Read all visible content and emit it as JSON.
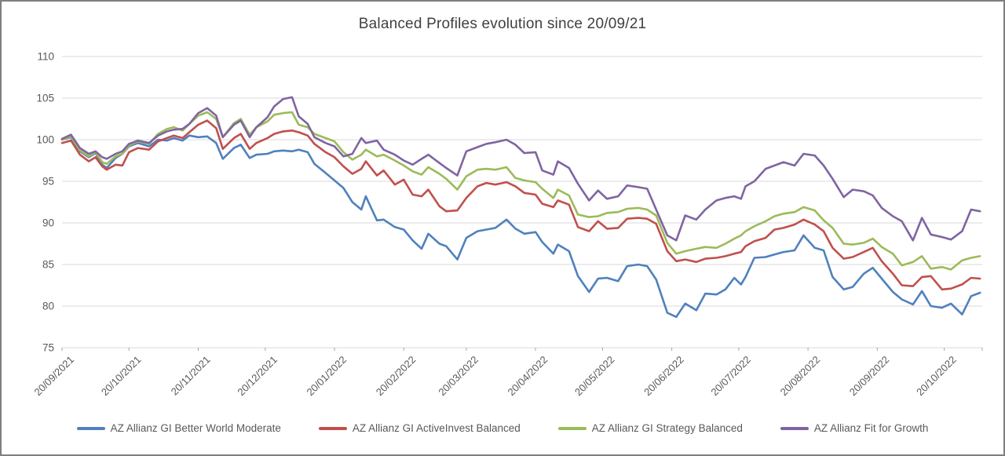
{
  "title": "Balanced Profiles evolution since 20/09/21",
  "colors": {
    "background": "#FFFFFF",
    "border": "#7F7F7F",
    "grid": "#D9D9D9",
    "tick": "#A6A6A6",
    "axis_text": "#595959",
    "title_text": "#404040"
  },
  "chart_data": {
    "type": "line",
    "title": "Balanced Profiles evolution since 20/09/21",
    "xlabel": "",
    "ylabel": "",
    "ylim": [
      75,
      110
    ],
    "y_ticks": [
      75,
      80,
      85,
      90,
      95,
      100,
      105,
      110
    ],
    "grid": "horizontal",
    "legend_position": "bottom",
    "x_unit": "days since 20/09/2021",
    "x_domain": [
      0,
      412
    ],
    "x_ticks": [
      {
        "day": 0,
        "label": "20/09/2021"
      },
      {
        "day": 30,
        "label": "20/10/2021"
      },
      {
        "day": 61,
        "label": "20/11/2021"
      },
      {
        "day": 91,
        "label": "20/12/2021"
      },
      {
        "day": 122,
        "label": "20/01/2022"
      },
      {
        "day": 153,
        "label": "20/02/2022"
      },
      {
        "day": 181,
        "label": "20/03/2022"
      },
      {
        "day": 212,
        "label": "20/04/2022"
      },
      {
        "day": 242,
        "label": "20/05/2022"
      },
      {
        "day": 273,
        "label": "20/06/2022"
      },
      {
        "day": 303,
        "label": "20/07/2022"
      },
      {
        "day": 334,
        "label": "20/08/2022"
      },
      {
        "day": 365,
        "label": "20/09/2022"
      },
      {
        "day": 395,
        "label": "20/10/2022"
      }
    ],
    "x": [
      0,
      4,
      8,
      12,
      15,
      18,
      20,
      24,
      27,
      30,
      34,
      39,
      43,
      47,
      50,
      54,
      57,
      61,
      65,
      69,
      72,
      77,
      80,
      84,
      87,
      92,
      95,
      99,
      103,
      106,
      110,
      113,
      118,
      122,
      126,
      130,
      134,
      136,
      141,
      144,
      149,
      153,
      157,
      161,
      164,
      169,
      172,
      177,
      181,
      186,
      190,
      194,
      199,
      203,
      207,
      212,
      215,
      220,
      222,
      227,
      231,
      236,
      240,
      244,
      249,
      253,
      258,
      262,
      266,
      271,
      275,
      279,
      284,
      288,
      293,
      297,
      301,
      304,
      306,
      310,
      315,
      319,
      323,
      328,
      332,
      337,
      341,
      345,
      350,
      354,
      359,
      363,
      367,
      372,
      376,
      381,
      385,
      389,
      394,
      398,
      403,
      407,
      411
    ],
    "series": [
      {
        "name": "AZ Allianz GI Better World Moderate",
        "color": "#4F81BD",
        "values": [
          100.0,
          100.3,
          98.6,
          97.9,
          98.4,
          97.0,
          96.6,
          97.8,
          98.3,
          99.2,
          99.6,
          99.2,
          100.0,
          99.9,
          100.2,
          99.9,
          100.5,
          100.3,
          100.4,
          99.6,
          97.7,
          99.0,
          99.4,
          97.8,
          98.2,
          98.3,
          98.6,
          98.7,
          98.6,
          98.8,
          98.5,
          97.1,
          96.0,
          95.1,
          94.2,
          92.5,
          91.6,
          93.2,
          90.3,
          90.4,
          89.5,
          89.2,
          87.9,
          86.9,
          88.7,
          87.5,
          87.2,
          85.6,
          88.2,
          89.0,
          89.2,
          89.4,
          90.4,
          89.3,
          88.7,
          88.9,
          87.7,
          86.3,
          87.4,
          86.6,
          83.6,
          81.7,
          83.3,
          83.4,
          83.0,
          84.8,
          85.0,
          84.8,
          83.2,
          79.2,
          78.7,
          80.3,
          79.5,
          81.5,
          81.4,
          82.0,
          83.4,
          82.6,
          83.5,
          85.8,
          85.9,
          86.2,
          86.5,
          86.7,
          88.5,
          87.0,
          86.7,
          83.5,
          82.0,
          82.3,
          83.9,
          84.6,
          83.3,
          81.7,
          80.8,
          80.2,
          81.8,
          80.0,
          79.8,
          80.3,
          79.0,
          81.2,
          81.6
        ]
      },
      {
        "name": "AZ Allianz GI ActiveInvest Balanced",
        "color": "#C0504D",
        "values": [
          99.6,
          99.9,
          98.2,
          97.4,
          97.9,
          96.8,
          96.4,
          97.0,
          96.9,
          98.5,
          99.0,
          98.8,
          99.8,
          100.2,
          100.5,
          100.2,
          100.9,
          101.8,
          102.3,
          101.4,
          98.9,
          100.2,
          100.7,
          98.9,
          99.6,
          100.2,
          100.7,
          101.0,
          101.1,
          100.9,
          100.5,
          99.5,
          98.5,
          97.9,
          96.8,
          95.9,
          96.5,
          97.4,
          95.7,
          96.3,
          94.6,
          95.2,
          93.4,
          93.2,
          94.0,
          92.0,
          91.4,
          91.5,
          93.0,
          94.4,
          94.8,
          94.6,
          94.9,
          94.4,
          93.6,
          93.4,
          92.3,
          91.9,
          92.7,
          92.2,
          89.5,
          89.0,
          90.2,
          89.3,
          89.4,
          90.5,
          90.6,
          90.5,
          89.9,
          86.6,
          85.4,
          85.6,
          85.3,
          85.7,
          85.8,
          86.0,
          86.3,
          86.5,
          87.2,
          87.8,
          88.2,
          89.2,
          89.4,
          89.8,
          90.4,
          89.8,
          89.0,
          87.0,
          85.7,
          85.9,
          86.5,
          87.0,
          85.4,
          83.9,
          82.5,
          82.4,
          83.5,
          83.6,
          82.0,
          82.1,
          82.6,
          83.4,
          83.3
        ]
      },
      {
        "name": "AZ Allianz GI Strategy Balanced",
        "color": "#9BBB59",
        "values": [
          100.0,
          100.4,
          98.7,
          98.0,
          98.5,
          97.3,
          97.1,
          98.0,
          98.3,
          99.3,
          99.8,
          99.5,
          100.7,
          101.3,
          101.5,
          101.1,
          101.9,
          102.9,
          103.3,
          102.5,
          100.3,
          102.0,
          102.5,
          100.6,
          101.5,
          102.2,
          103.0,
          103.2,
          103.3,
          101.8,
          101.5,
          100.7,
          100.2,
          99.8,
          98.5,
          97.6,
          98.2,
          98.8,
          98.0,
          98.2,
          97.5,
          96.9,
          96.2,
          95.8,
          96.7,
          95.9,
          95.3,
          94.0,
          95.6,
          96.4,
          96.5,
          96.4,
          96.7,
          95.4,
          95.1,
          94.9,
          94.1,
          93.0,
          94.0,
          93.3,
          91.0,
          90.7,
          90.8,
          91.2,
          91.3,
          91.7,
          91.8,
          91.6,
          90.9,
          87.6,
          86.3,
          86.6,
          86.9,
          87.1,
          87.0,
          87.5,
          88.1,
          88.5,
          89.0,
          89.6,
          90.2,
          90.8,
          91.1,
          91.3,
          91.9,
          91.5,
          90.3,
          89.4,
          87.5,
          87.4,
          87.6,
          88.1,
          87.1,
          86.3,
          84.9,
          85.3,
          86.0,
          84.5,
          84.7,
          84.4,
          85.5,
          85.8,
          86.0
        ]
      },
      {
        "name": "AZ Allianz Fit for Growth",
        "color": "#8064A2",
        "values": [
          100.1,
          100.6,
          99.0,
          98.3,
          98.6,
          97.9,
          97.7,
          98.3,
          98.6,
          99.5,
          99.9,
          99.6,
          100.5,
          101.0,
          101.2,
          101.3,
          101.9,
          103.2,
          103.8,
          102.9,
          100.3,
          101.8,
          102.3,
          100.3,
          101.5,
          102.7,
          104.0,
          104.9,
          105.1,
          102.8,
          101.9,
          100.3,
          99.6,
          99.2,
          98.0,
          98.3,
          100.2,
          99.6,
          99.9,
          98.8,
          98.2,
          97.5,
          97.0,
          97.7,
          98.2,
          97.2,
          96.6,
          95.7,
          98.6,
          99.1,
          99.5,
          99.7,
          100.0,
          99.4,
          98.4,
          98.5,
          96.3,
          95.8,
          97.4,
          96.6,
          94.7,
          92.7,
          93.9,
          92.9,
          93.2,
          94.5,
          94.3,
          94.1,
          91.6,
          88.5,
          87.9,
          90.9,
          90.4,
          91.6,
          92.7,
          93.0,
          93.2,
          92.9,
          94.4,
          95.0,
          96.5,
          96.9,
          97.3,
          96.9,
          98.3,
          98.1,
          96.9,
          95.3,
          93.1,
          94.0,
          93.8,
          93.3,
          91.8,
          90.8,
          90.2,
          87.9,
          90.6,
          88.6,
          88.3,
          88.0,
          89.0,
          91.6,
          91.4
        ]
      }
    ]
  }
}
